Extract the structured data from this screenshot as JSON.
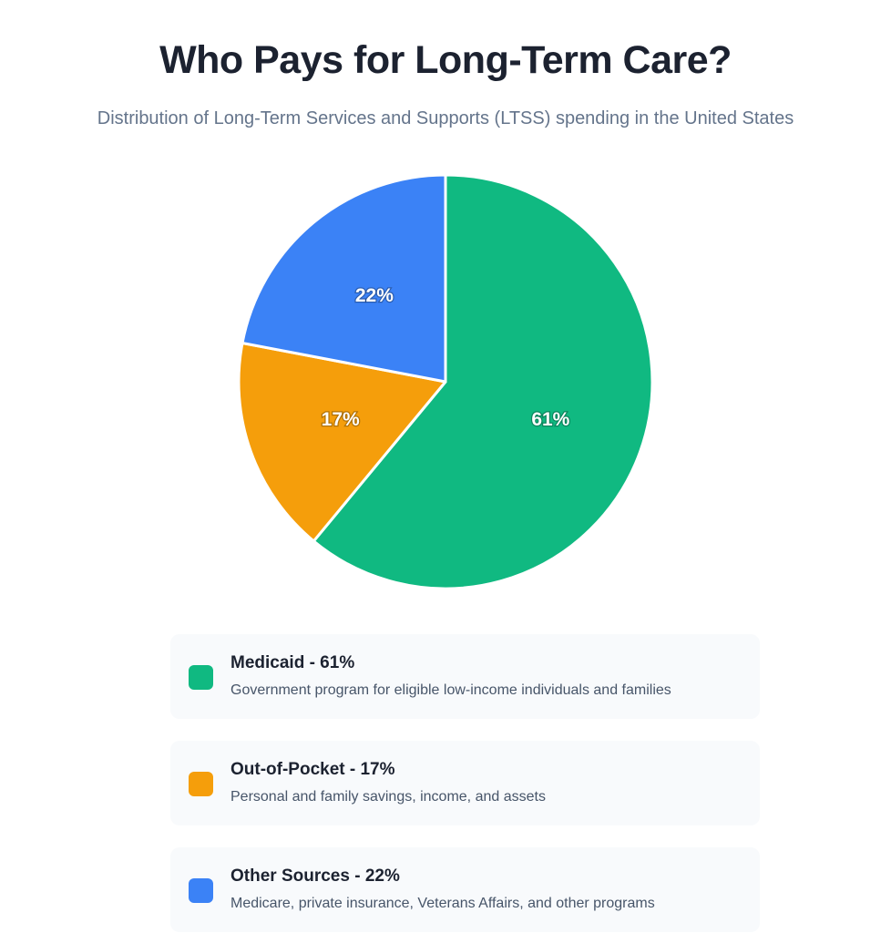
{
  "title": "Who Pays for Long-Term Care?",
  "subtitle": "Distribution of Long-Term Services and Supports (LTSS) spending in the United States",
  "chart_data": {
    "type": "pie",
    "title": "Who Pays for Long-Term Care?",
    "subtitle": "Distribution of Long-Term Services and Supports (LTSS) spending in the United States",
    "start_angle": "12 o'clock",
    "direction": "clockwise",
    "slices": [
      {
        "name": "Medicaid",
        "value": 61,
        "label": "61%",
        "color": "#10b981",
        "legend": "Medicaid - 61%",
        "description": "Government program for eligible low-income individuals and families"
      },
      {
        "name": "Out-of-Pocket",
        "value": 17,
        "label": "17%",
        "color": "#f59e0b",
        "legend": "Out-of-Pocket - 17%",
        "description": "Personal and family savings, income, and assets"
      },
      {
        "name": "Other Sources",
        "value": 22,
        "label": "22%",
        "color": "#3b82f6",
        "legend": "Other Sources - 22%",
        "description": "Medicare, private insurance, Veterans Affairs, and other programs"
      }
    ],
    "legend_position": "bottom"
  }
}
